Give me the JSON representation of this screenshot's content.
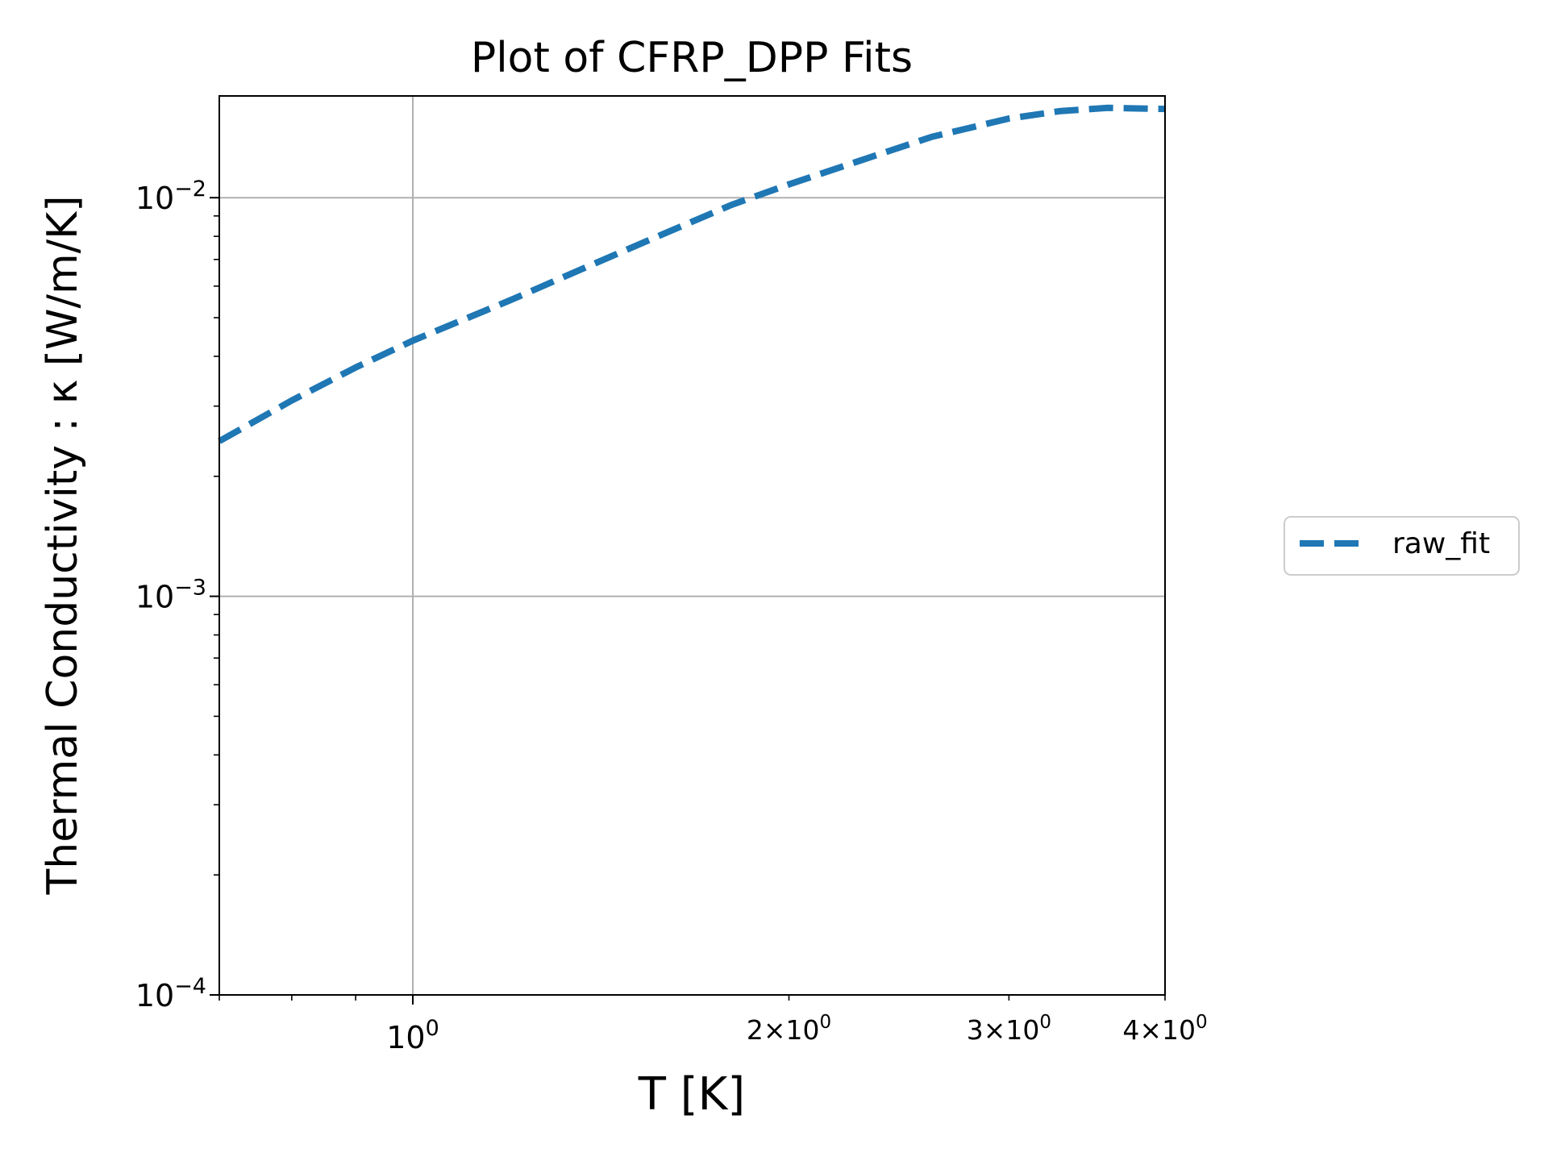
{
  "chart_data": {
    "type": "line",
    "title": "Plot of CFRP_DPP Fits",
    "xlabel": "T [K]",
    "ylabel": "Thermal Conductivity : κ [W/m/K]",
    "xscale": "log",
    "yscale": "log",
    "xlim": [
      0.7,
      4.0
    ],
    "ylim": [
      0.0001,
      0.018
    ],
    "grid": true,
    "legend_position": "right, outside plot",
    "x_ticks": [
      {
        "value": 1,
        "base": "10",
        "exp": "0",
        "mult": ""
      },
      {
        "value": 2,
        "base": "10",
        "exp": "0",
        "mult": "2×"
      },
      {
        "value": 3,
        "base": "10",
        "exp": "0",
        "mult": "3×"
      },
      {
        "value": 4,
        "base": "10",
        "exp": "0",
        "mult": "4×"
      }
    ],
    "y_ticks": [
      {
        "value": 0.01,
        "base": "10",
        "exp": "−2"
      },
      {
        "value": 0.001,
        "base": "10",
        "exp": "−3"
      },
      {
        "value": 0.0001,
        "base": "10",
        "exp": "−4"
      }
    ],
    "series": [
      {
        "name": "raw_fit",
        "color": "#1f77b4",
        "style": "dashed",
        "x": [
          0.7,
          0.8,
          0.9,
          1.0,
          1.2,
          1.4,
          1.6,
          1.8,
          2.0,
          2.3,
          2.6,
          3.0,
          3.3,
          3.6,
          4.0
        ],
        "y": [
          0.00245,
          0.0031,
          0.00375,
          0.00438,
          0.00555,
          0.00685,
          0.0082,
          0.0096,
          0.0108,
          0.0125,
          0.0142,
          0.0158,
          0.0165,
          0.0168,
          0.0167
        ]
      }
    ]
  }
}
